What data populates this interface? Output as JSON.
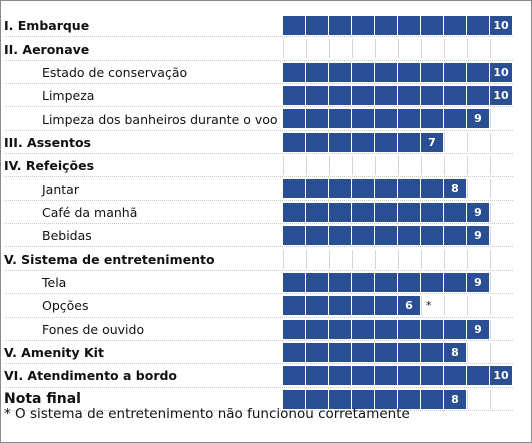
{
  "rows": [
    {
      "label": "I. Embarque",
      "type": "main",
      "score": 10,
      "marker": ""
    },
    {
      "label": "II. Aeronave",
      "type": "main",
      "score": null,
      "marker": ""
    },
    {
      "label": "Estado de conservação",
      "type": "sub",
      "score": 10,
      "marker": ""
    },
    {
      "label": "Limpeza",
      "type": "sub",
      "score": 10,
      "marker": ""
    },
    {
      "label": "Limpeza dos banheiros durante o voo",
      "type": "sub",
      "score": 9,
      "marker": ""
    },
    {
      "label": "III. Assentos",
      "type": "main",
      "score": 7,
      "marker": ""
    },
    {
      "label": "IV. Refeições",
      "type": "main",
      "score": null,
      "marker": ""
    },
    {
      "label": "Jantar",
      "type": "sub",
      "score": 8,
      "marker": ""
    },
    {
      "label": "Café da manhã",
      "type": "sub",
      "score": 9,
      "marker": ""
    },
    {
      "label": "Bebidas",
      "type": "sub",
      "score": 9,
      "marker": ""
    },
    {
      "label": "V. Sistema de entretenimento",
      "type": "main",
      "score": null,
      "marker": ""
    },
    {
      "label": "Tela",
      "type": "sub",
      "score": 9,
      "marker": ""
    },
    {
      "label": "Opções",
      "type": "sub",
      "score": 6,
      "marker": "*"
    },
    {
      "label": "Fones de ouvido",
      "type": "sub",
      "score": 9,
      "marker": ""
    },
    {
      "label": "V. Amenity Kit",
      "type": "main",
      "score": 8,
      "marker": ""
    },
    {
      "label": "VI. Atendimento a bordo",
      "type": "main",
      "score": 10,
      "marker": ""
    },
    {
      "label": "Nota final",
      "type": "final",
      "score": 8,
      "marker": ""
    }
  ],
  "scale_max": 10,
  "footnote": "* O sistema de entretenimento não funcionou corretamente",
  "colors": {
    "bar": "#2a4e94",
    "grid": "#d5d5d5",
    "text": "#111111"
  }
}
